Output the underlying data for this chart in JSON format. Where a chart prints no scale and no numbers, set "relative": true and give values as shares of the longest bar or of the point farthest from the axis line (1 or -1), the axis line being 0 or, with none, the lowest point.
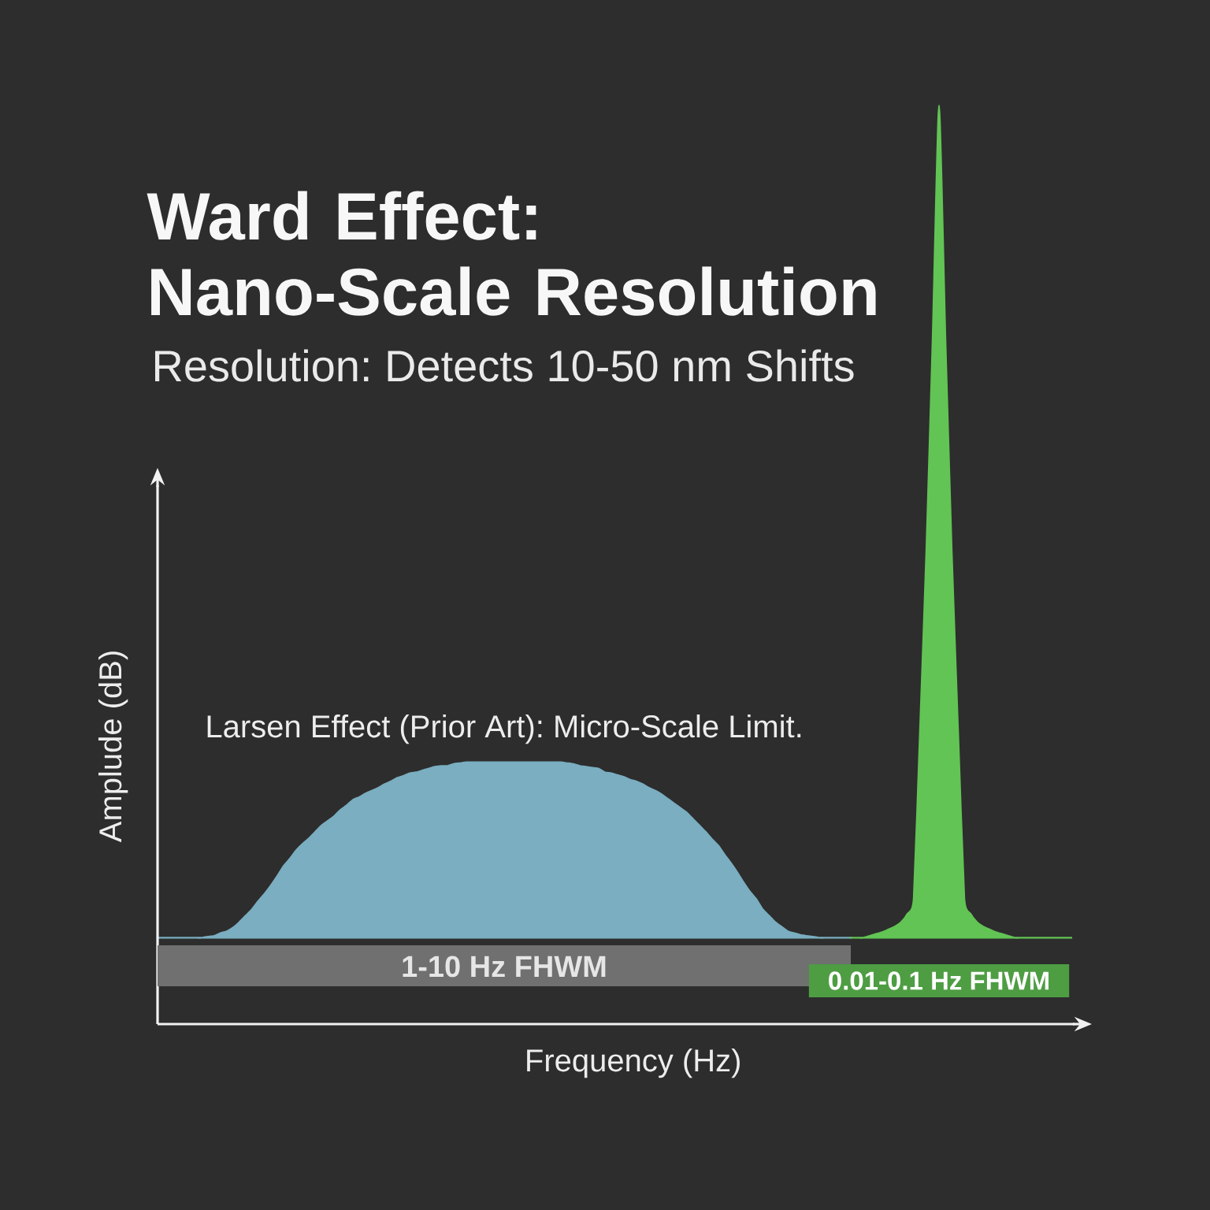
{
  "chart_data": {
    "type": "area",
    "relative": true,
    "title": "Ward Effect: Nano-Scale Resolution",
    "subtitle": "Resolution: Detects 10-50 nm Shifts",
    "xlabel": "Frequency (Hz)",
    "ylabel": "Amplude (dB)",
    "annotations": [
      "Larsen Effect (Prior Art): Micro-Scale Limit.",
      "1-10 Hz FHWM",
      "0.01-0.1 Hz FHWM"
    ],
    "categories": [
      null,
      null,
      null,
      null,
      null,
      null,
      null,
      null,
      null,
      null,
      null,
      null,
      null,
      null,
      null,
      null,
      null,
      null,
      null,
      null,
      null,
      null,
      null,
      null,
      null,
      null,
      null,
      null,
      null,
      null,
      null,
      null,
      null,
      null,
      null,
      null,
      null,
      null,
      null,
      null,
      null,
      null,
      null,
      null,
      null,
      null,
      null,
      null,
      null,
      null,
      null,
      null,
      null,
      null,
      null,
      null,
      null,
      null,
      null,
      null,
      null,
      null,
      null,
      null,
      null,
      null,
      null,
      null,
      null,
      null,
      null,
      null,
      null,
      null,
      null,
      null,
      null,
      null,
      null,
      null,
      null,
      null,
      null,
      null,
      null,
      null,
      null,
      null,
      null,
      null,
      null,
      null,
      null,
      null,
      null,
      null,
      null,
      null,
      null,
      null,
      null,
      null,
      null,
      null,
      null,
      null,
      null,
      null,
      null,
      null,
      null,
      null,
      null,
      null,
      null,
      null,
      null,
      null,
      null,
      null,
      null,
      null,
      null,
      null,
      null,
      null,
      null,
      null,
      null,
      null,
      null,
      null,
      null,
      null,
      null,
      null,
      null,
      null,
      null,
      null,
      null,
      null,
      null,
      null,
      null,
      null
    ],
    "series": [
      {
        "color": "#7aaec0",
        "values": [
          0.094,
          0.094,
          0.094,
          0.094,
          0.094,
          0.094,
          0.094,
          0.094,
          0.095,
          0.096,
          0.099,
          0.101,
          0.105,
          0.111,
          0.118,
          0.125,
          0.134,
          0.142,
          0.151,
          0.161,
          0.172,
          0.18,
          0.189,
          0.196,
          0.202,
          0.209,
          0.216,
          0.221,
          0.226,
          0.233,
          0.238,
          0.244,
          0.247,
          0.251,
          0.254,
          0.257,
          0.261,
          0.264,
          0.268,
          0.27,
          0.273,
          0.274,
          0.276,
          0.278,
          0.28,
          0.281,
          0.281,
          0.283,
          0.284,
          0.285,
          0.285,
          0.285,
          0.285,
          0.285,
          0.285,
          0.285,
          0.285,
          0.285,
          0.285,
          0.285,
          0.285,
          0.285,
          0.285,
          0.285,
          0.285,
          0.284,
          0.283,
          0.281,
          0.28,
          0.279,
          0.278,
          0.274,
          0.273,
          0.271,
          0.269,
          0.266,
          0.264,
          0.261,
          0.257,
          0.254,
          0.25,
          0.245,
          0.24,
          0.235,
          0.23,
          0.223,
          0.216,
          0.209,
          0.201,
          0.194,
          0.184,
          0.175,
          0.165,
          0.154,
          0.144,
          0.136,
          0.125,
          0.118,
          0.111,
          0.106,
          0.101,
          0.099,
          0.097,
          0.096,
          0.095,
          0.094,
          0.094,
          0.094,
          0.094,
          0.094,
          0.094,
          null,
          null,
          null,
          null,
          null,
          null,
          null,
          null,
          null,
          null,
          null,
          null,
          null,
          null,
          null,
          null,
          null,
          null,
          null,
          null,
          null,
          null,
          null,
          null,
          null,
          null,
          null,
          null,
          null,
          null,
          null,
          null,
          null,
          null,
          null
        ]
      },
      {
        "color": "#62c454",
        "values": [
          null,
          null,
          null,
          null,
          null,
          null,
          null,
          null,
          null,
          null,
          null,
          null,
          null,
          null,
          null,
          null,
          null,
          null,
          null,
          null,
          null,
          null,
          null,
          null,
          null,
          null,
          null,
          null,
          null,
          null,
          null,
          null,
          null,
          null,
          null,
          null,
          null,
          null,
          null,
          null,
          null,
          null,
          null,
          null,
          null,
          null,
          null,
          null,
          null,
          null,
          null,
          null,
          null,
          null,
          null,
          null,
          null,
          null,
          null,
          null,
          null,
          null,
          null,
          null,
          null,
          null,
          null,
          null,
          null,
          null,
          null,
          null,
          null,
          null,
          null,
          null,
          null,
          null,
          null,
          null,
          null,
          null,
          null,
          null,
          null,
          null,
          null,
          null,
          null,
          null,
          null,
          null,
          null,
          null,
          null,
          null,
          null,
          null,
          null,
          null,
          null,
          null,
          null,
          null,
          null,
          null,
          null,
          null,
          null,
          null,
          0.094,
          0.094,
          0.094,
          0.096,
          0.098,
          0.1,
          0.103,
          0.106,
          0.111,
          0.12,
          0.137,
          0.321,
          0.515,
          0.746,
          1,
          0.746,
          0.515,
          0.321,
          0.137,
          0.12,
          0.111,
          0.106,
          0.103,
          0.1,
          0.098,
          0.096,
          0.094,
          0.094,
          0.094,
          0.094,
          0.094,
          0.094,
          0.094,
          0.094,
          0.094,
          0.094
        ]
      }
    ]
  }
}
